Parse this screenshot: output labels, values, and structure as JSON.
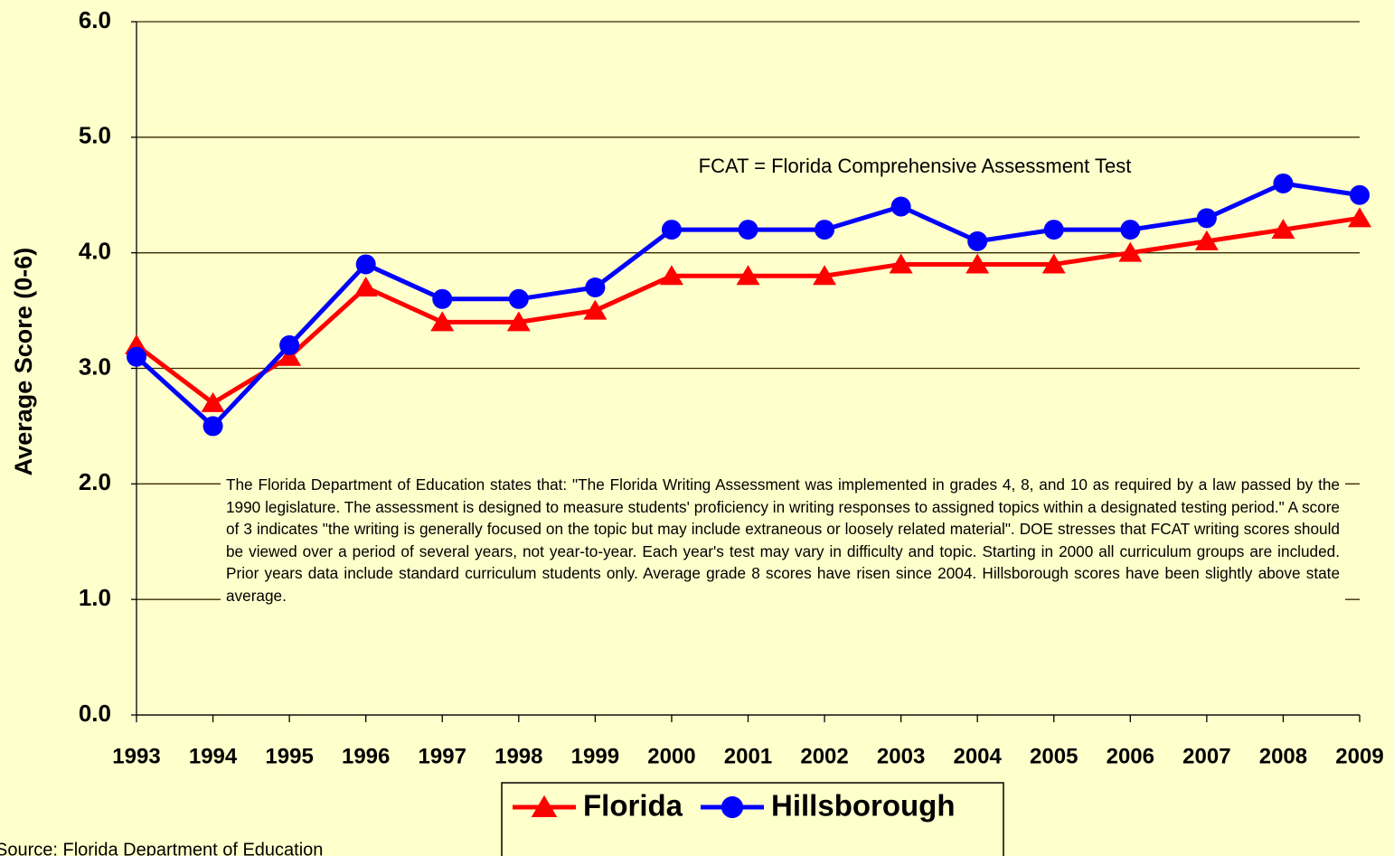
{
  "chart_data": {
    "type": "line",
    "y_label": "Average Score (0-6)",
    "annotation": "FCAT = Florida Comprehensive Assessment Test",
    "note": "The Florida Department of Education states that: \"The Florida Writing Assessment was implemented in grades 4, 8, and 10 as required by a law passed by the 1990 legislature. The assessment is designed to measure students' proficiency in writing responses to assigned topics within a designated testing period.\"  A score of 3 indicates \"the writing is generally focused on the topic but may include extraneous or loosely related material\".  DOE stresses that FCAT writing scores should be viewed over a period of several years, not year-to-year.  Each year's test may vary in difficulty and topic.  Starting in 2000 all curriculum groups are included.  Prior years data include standard curriculum students only.  Average grade 8 scores have risen since 2004.  Hillsborough scores have been slightly above state average.",
    "source": "Source: Florida Department of Education",
    "categories": [
      "1993",
      "1994",
      "1995",
      "1996",
      "1997",
      "1998",
      "1999",
      "2000",
      "2001",
      "2002",
      "2003",
      "2004",
      "2005",
      "2006",
      "2007",
      "2008",
      "2009"
    ],
    "series": [
      {
        "name": "Florida",
        "color": "#ff0000",
        "marker": "triangle",
        "values": [
          3.2,
          2.7,
          3.1,
          3.7,
          3.4,
          3.4,
          3.5,
          3.8,
          3.8,
          3.8,
          3.9,
          3.9,
          3.9,
          4.0,
          4.1,
          4.2,
          4.3
        ]
      },
      {
        "name": "Hillsborough",
        "color": "#0000ff",
        "marker": "circle",
        "values": [
          3.1,
          2.5,
          3.2,
          3.9,
          3.6,
          3.6,
          3.7,
          4.2,
          4.2,
          4.2,
          4.4,
          4.1,
          4.2,
          4.2,
          4.3,
          4.6,
          4.5
        ]
      }
    ],
    "ylim": [
      0,
      6
    ],
    "yticks": [
      {
        "value": 0,
        "label": "0.0"
      },
      {
        "value": 1,
        "label": "1.0"
      },
      {
        "value": 2,
        "label": "2.0"
      },
      {
        "value": 3,
        "label": "3.0"
      },
      {
        "value": 4,
        "label": "4.0"
      },
      {
        "value": 5,
        "label": "5.0"
      },
      {
        "value": 6,
        "label": "6.0"
      }
    ],
    "grid": true,
    "legend": "bottom"
  }
}
